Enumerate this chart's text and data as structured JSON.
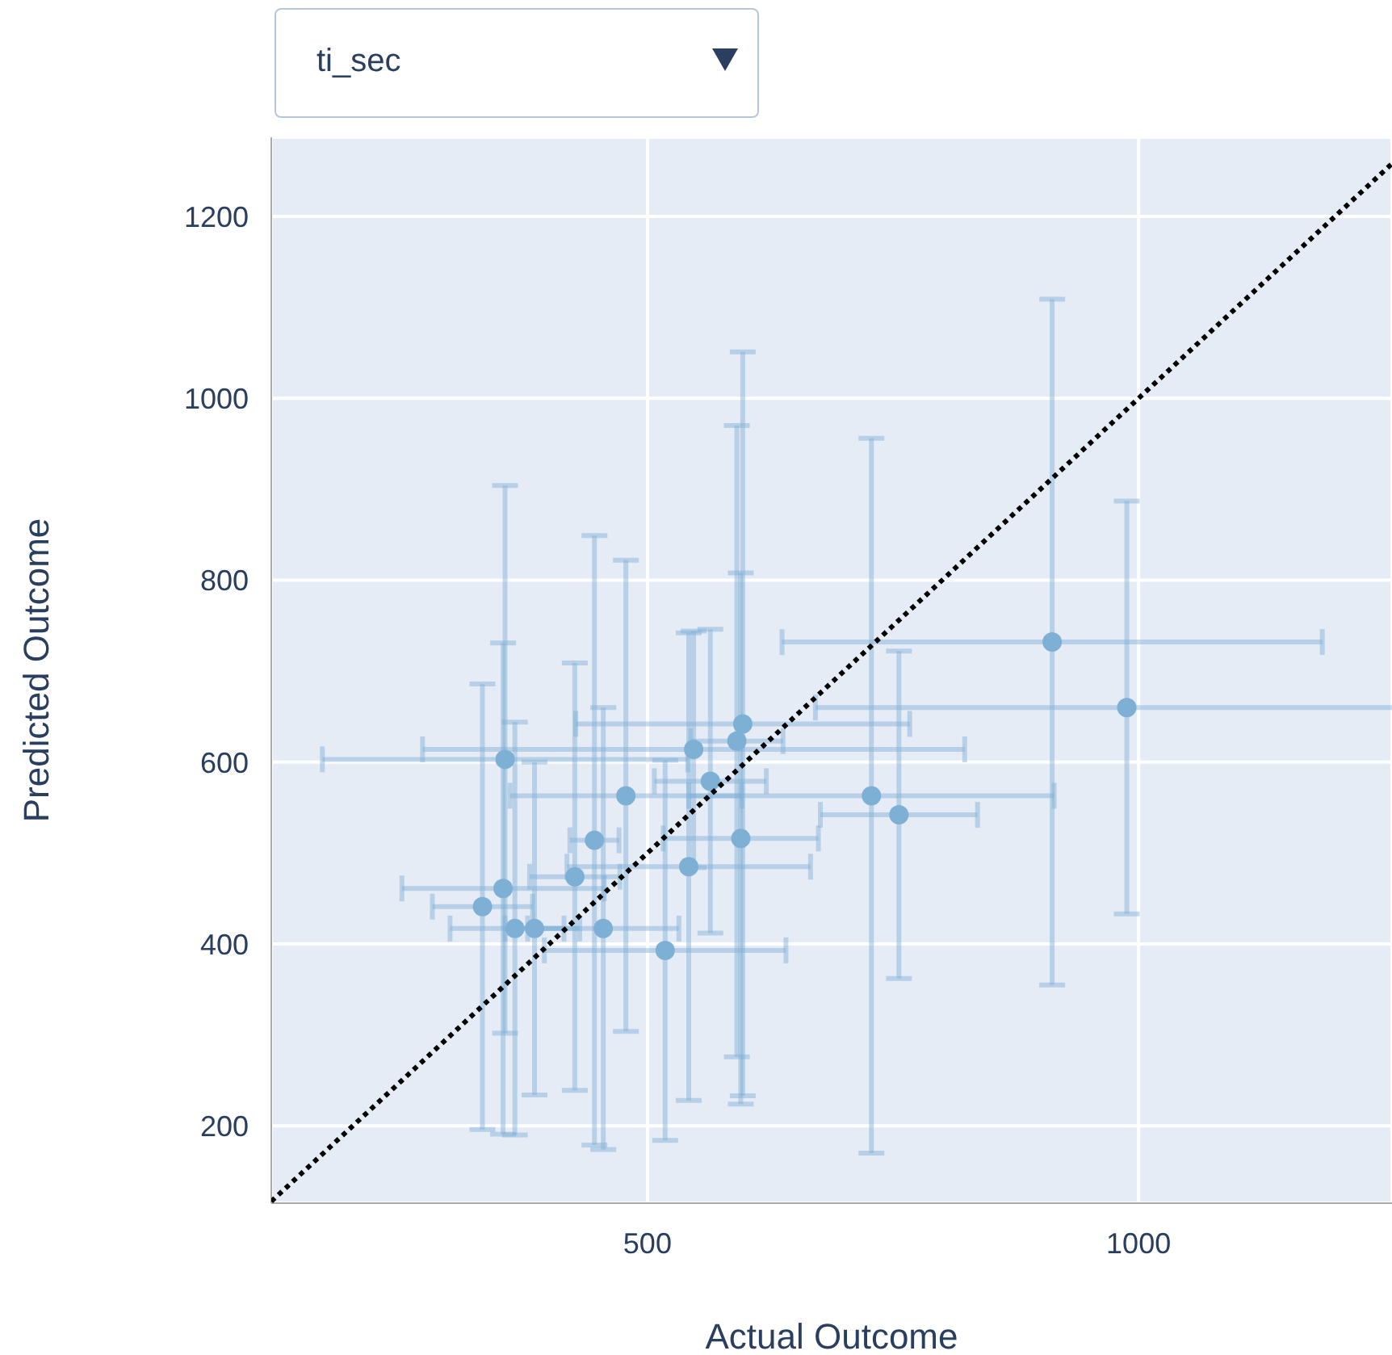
{
  "chart_data": {
    "type": "scatter",
    "xlabel": "Actual Outcome",
    "ylabel": "Predicted Outcome",
    "annotations": [
      "ti_sec"
    ],
    "xlim": [
      117,
      1258
    ],
    "ylim": [
      115,
      1287
    ],
    "xticks": [
      500,
      1000
    ],
    "yticks": [
      200,
      400,
      600,
      800,
      1000,
      1200
    ],
    "grid": true,
    "marker": "circle",
    "series": [
      {
        "type": "scatter",
        "color": "#7eb0d5",
        "x": [
          355,
          353,
          332,
          365,
          385,
          455,
          426,
          446,
          478,
          728,
          518,
          542,
          547,
          564,
          595,
          591,
          597,
          912,
          988,
          756
        ],
        "values": [
          603,
          461,
          441,
          417,
          417,
          417,
          474,
          514,
          563,
          563,
          393,
          485,
          614,
          579,
          516,
          623,
          642,
          732,
          660,
          542
        ],
        "errors": [
          301,
          270,
          245,
          227,
          183,
          243,
          235,
          335,
          259,
          393,
          209,
          257,
          130,
          167,
          292,
          347,
          409,
          377,
          227,
          180
        ],
        "xerrors": [
          186,
          103,
          51,
          66,
          30,
          77,
          46,
          25,
          118,
          186,
          123,
          124,
          276,
          57,
          79,
          47,
          170,
          275,
          317,
          80
        ]
      },
      {
        "type": "line",
        "color": "#000000",
        "line_style": "dotted",
        "marker": "none",
        "x": [
          117,
          1258
        ],
        "values": [
          117,
          1258
        ]
      }
    ]
  }
}
